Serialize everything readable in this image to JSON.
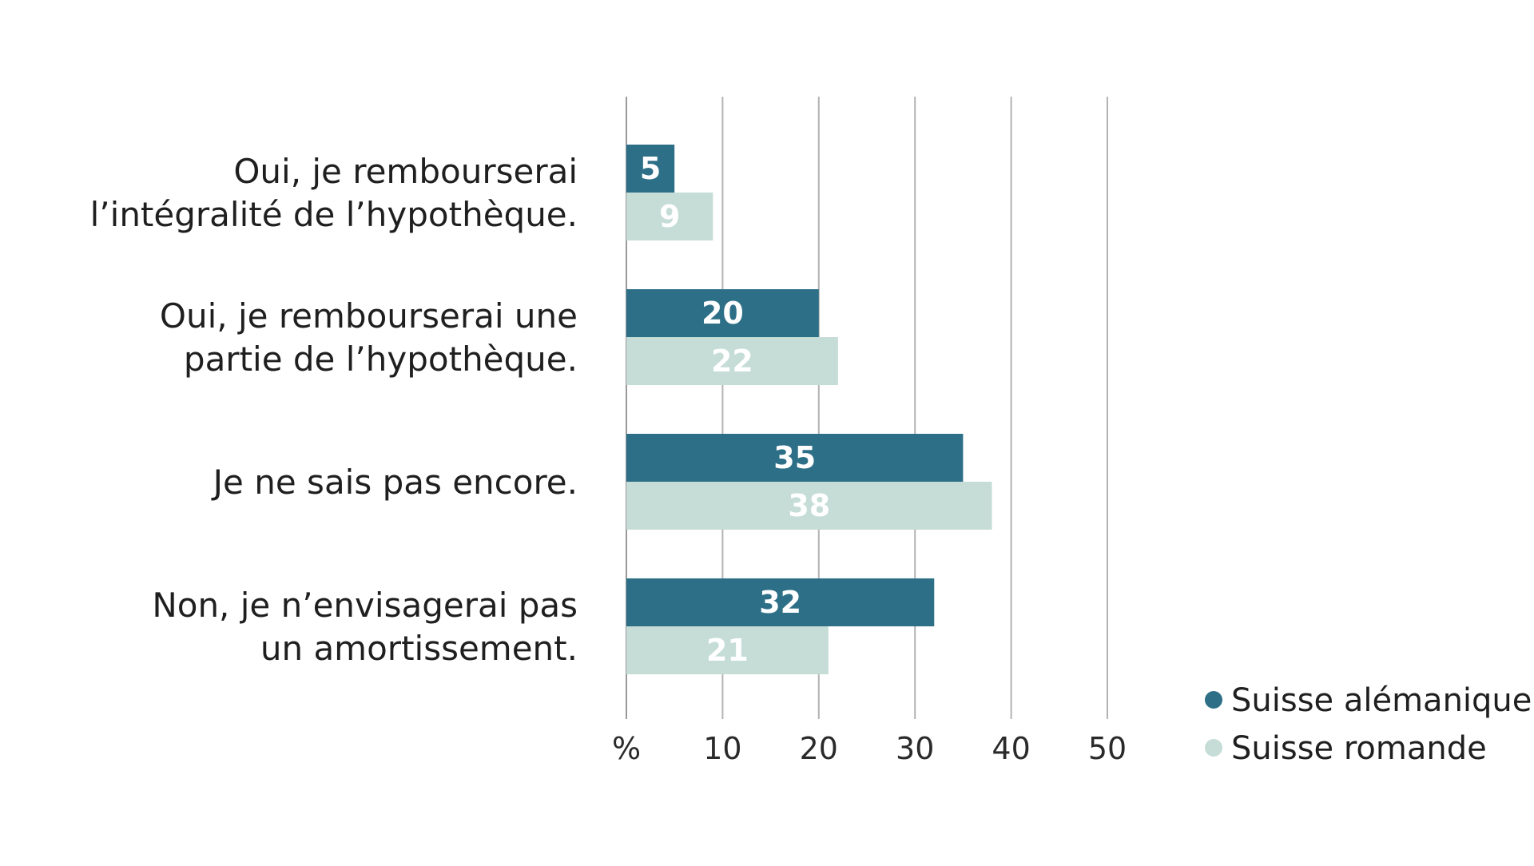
{
  "chart_data": {
    "type": "bar",
    "orientation": "horizontal",
    "categories": [
      [
        "Oui, je rembourserai",
        "l’intégralité de l’hypothèque."
      ],
      [
        "Oui, je rembourserai une",
        "partie de l’hypothèque."
      ],
      [
        "Je ne sais pas encore."
      ],
      [
        "Non, je n’envisagerai pas",
        "un amortissement."
      ]
    ],
    "series": [
      {
        "name": "Suisse alémanique",
        "color": "#2e6f88",
        "values": [
          5,
          20,
          35,
          32
        ]
      },
      {
        "name": "Suisse romande",
        "color": "#c5ddd6",
        "values": [
          9,
          22,
          38,
          21
        ]
      }
    ],
    "x_ticks": [
      "%",
      "10",
      "20",
      "30",
      "40",
      "50"
    ],
    "x_tick_values": [
      0,
      10,
      20,
      30,
      40,
      50
    ],
    "xlim": [
      0,
      50
    ],
    "grid": true,
    "legend_position": "bottom-right",
    "title": "",
    "xlabel": "",
    "ylabel": ""
  }
}
